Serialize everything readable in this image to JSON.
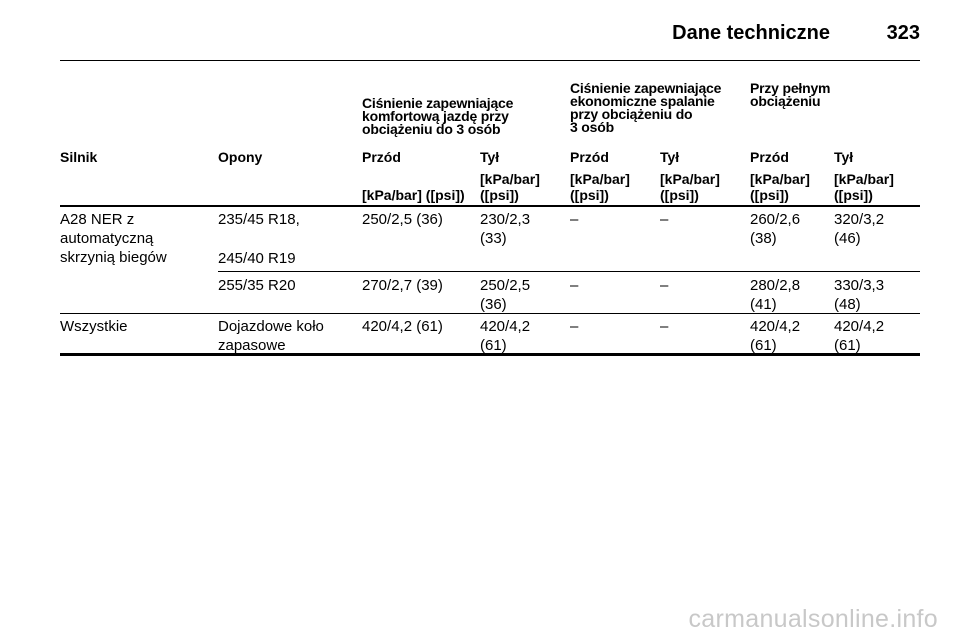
{
  "header": {
    "title": "Dane techniczne",
    "page_number": "323"
  },
  "groups": {
    "comfort": [
      "Ciśnienie zapewniające",
      "komfortową jazdę przy",
      "obciążeniu do 3 osób"
    ],
    "economy": [
      "Ciśnienie zapewniające",
      "ekonomiczne spalanie",
      "przy obciążeniu do",
      "3 osób"
    ],
    "full": [
      "Przy pełnym",
      "obciążeniu"
    ]
  },
  "columns": [
    "Silnik",
    "Opony",
    "Przód",
    "Tył",
    "Przód",
    "Tył",
    "Przód",
    "Tył"
  ],
  "units": {
    "c2": "[kPa/bar] ([psi])",
    "c3": [
      "[kPa/bar]",
      "([psi])"
    ],
    "c4": [
      "[kPa/bar]",
      "([psi])"
    ],
    "c5": [
      "[kPa/bar]",
      "([psi])"
    ],
    "c6": [
      "[kPa/bar]",
      "([psi])"
    ],
    "c7": [
      "[kPa/bar]",
      "([psi])"
    ]
  },
  "rows": [
    {
      "engine": [
        "A28 NER z",
        "automatyczną",
        "skrzynią biegów"
      ],
      "tyres": [
        "235/45 R18,",
        "245/40 R19"
      ],
      "values": [
        [
          "250/2,5 (36)"
        ],
        [
          "230/2,3",
          "(33)"
        ],
        [
          "–"
        ],
        [
          "–"
        ],
        [
          "260/2,6",
          "(38)"
        ],
        [
          "320/3,2",
          "(46)"
        ]
      ]
    },
    {
      "tyres": [
        "255/35 R20"
      ],
      "values": [
        [
          "270/2,7 (39)"
        ],
        [
          "250/2,5",
          "(36)"
        ],
        [
          "–"
        ],
        [
          "–"
        ],
        [
          "280/2,8",
          "(41)"
        ],
        [
          "330/3,3",
          "(48)"
        ]
      ]
    },
    {
      "engine": [
        "Wszystkie"
      ],
      "tyres": [
        "Dojazdowe koło",
        "zapasowe"
      ],
      "values": [
        [
          "420/4,2 (61)"
        ],
        [
          "420/4,2",
          "(61)"
        ],
        [
          "–"
        ],
        [
          "–"
        ],
        [
          "420/4,2",
          "(61)"
        ],
        [
          "420/4,2",
          "(61)"
        ]
      ]
    }
  ],
  "watermark": "carmanualsonline.info"
}
